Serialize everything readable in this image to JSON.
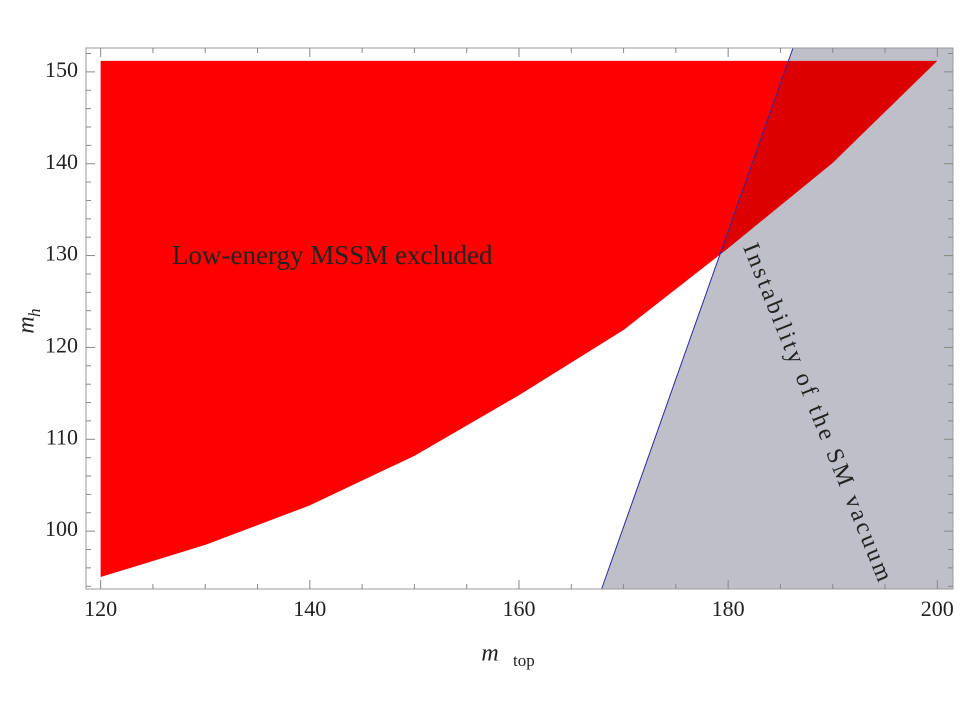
{
  "chart_data": {
    "type": "region",
    "xlim": [
      118.6,
      201.5
    ],
    "ylim": [
      93.7,
      152.6
    ],
    "xticks": [
      120,
      140,
      160,
      180,
      200
    ],
    "yticks": [
      100,
      110,
      120,
      130,
      140,
      150
    ],
    "xminor": [
      125,
      130,
      135,
      145,
      150,
      155,
      165,
      170,
      175,
      185,
      190,
      195
    ],
    "yminor": [
      94,
      96,
      98,
      102,
      104,
      106,
      108,
      112,
      114,
      116,
      118,
      122,
      124,
      126,
      128,
      132,
      134,
      136,
      138,
      142,
      144,
      146,
      148,
      152
    ],
    "xlabel": "m",
    "xlabel_sub": "top",
    "ylabel": "m",
    "ylabel_sub": "h",
    "region": {
      "label": "Low-energy MSSM excluded",
      "color": "#ff0000",
      "x": [
        120,
        130,
        140,
        150,
        160,
        170,
        180,
        190,
        200
      ],
      "lower": [
        95,
        98.5,
        102.8,
        108.2,
        114.8,
        121.9,
        130.8,
        140.1,
        151.2
      ],
      "upper": [
        151.2,
        151.2,
        151.2,
        151.2,
        151.2,
        151.2,
        151.2,
        151.2,
        151.2
      ]
    },
    "boundary": {
      "label": "Instability of the SM vacuum",
      "line_color": "#2a2aa0",
      "fill_color": "#dddde3",
      "x": [
        167.9,
        186.2
      ],
      "y": [
        93.7,
        152.6
      ]
    }
  }
}
